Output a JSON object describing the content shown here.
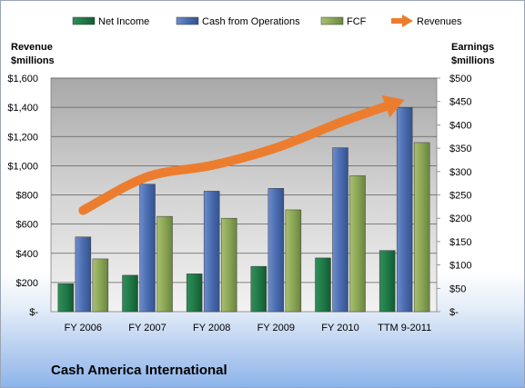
{
  "chart_data": {
    "type": "bar",
    "categories": [
      "FY 2006",
      "FY 2007",
      "FY 2008",
      "FY 2009",
      "FY 2010",
      "TTM 9-2011"
    ],
    "series": [
      {
        "name": "Net Income",
        "axis": "right",
        "kind": "bar",
        "color": "#1f7a47",
        "values": [
          60,
          78,
          81,
          97,
          115,
          131
        ]
      },
      {
        "name": "Cash from Operations",
        "axis": "right",
        "kind": "bar",
        "color": "#4a6db0",
        "values": [
          160,
          273,
          258,
          264,
          351,
          437
        ]
      },
      {
        "name": "FCF",
        "axis": "right",
        "kind": "bar",
        "color": "#8aa655",
        "values": [
          113,
          204,
          200,
          218,
          291,
          362
        ]
      },
      {
        "name": "Revenues",
        "axis": "left",
        "kind": "arrow",
        "color": "#ec7d2e",
        "values": [
          694,
          924,
          1002,
          1122,
          1297,
          1452
        ]
      }
    ],
    "y_left": {
      "title_line1": "Revenue",
      "title_line2": "$millions",
      "min": 0,
      "max": 1600,
      "step": 200,
      "tick_labels": [
        "$-",
        "$200",
        "$400",
        "$600",
        "$800",
        "$1,000",
        "$1,200",
        "$1,400",
        "$1,600"
      ]
    },
    "y_right": {
      "title_line1": "Earnings",
      "title_line2": "$millions",
      "min": 0,
      "max": 500,
      "step": 50,
      "tick_labels": [
        "$-",
        "$50",
        "$100",
        "$150",
        "$200",
        "$250",
        "$300",
        "$350",
        "$400",
        "$450",
        "$500"
      ]
    },
    "grid": true,
    "legend": "top",
    "plot_background": "#9c9c9c"
  },
  "company": "Cash America International"
}
